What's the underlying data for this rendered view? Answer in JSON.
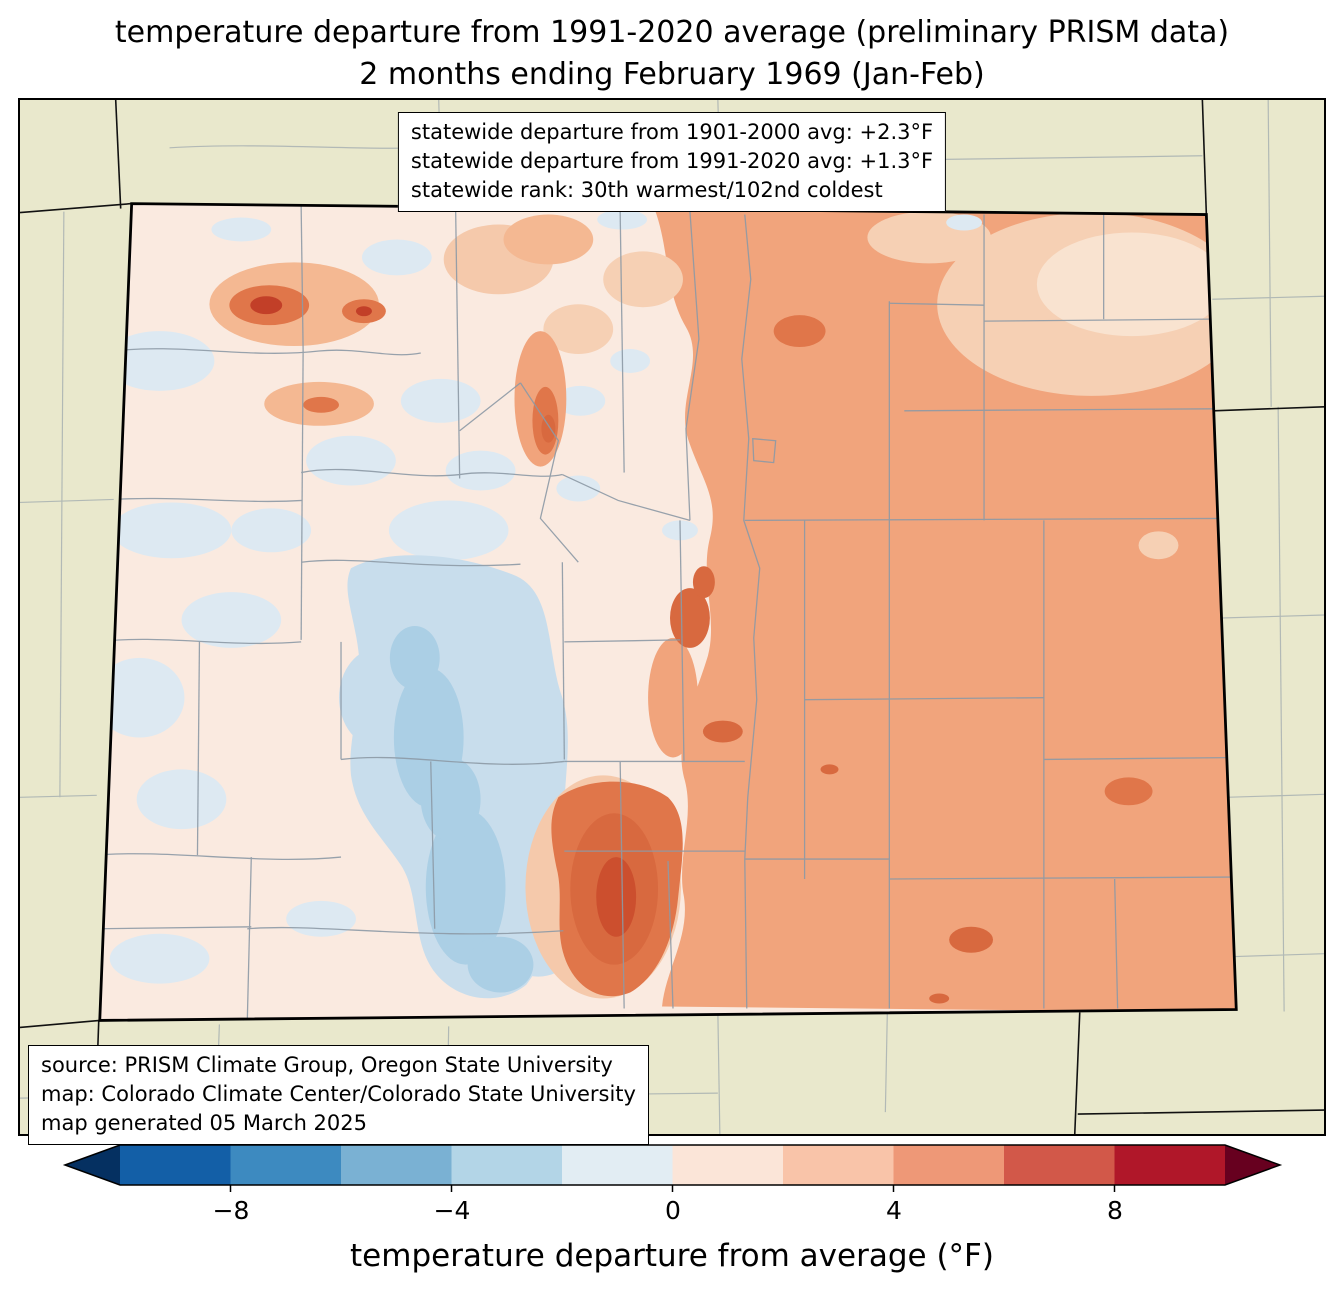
{
  "title": {
    "line1": "temperature departure from 1991-2020 average (preliminary PRISM data)",
    "line2": "2 months ending February 1969 (Jan-Feb)"
  },
  "stats_box": {
    "line1": "statewide departure from 1901-2000 avg: +2.3°F",
    "line2": "statewide departure from 1991-2020 avg: +1.3°F",
    "line3": "statewide rank: 30th warmest/102nd coldest"
  },
  "source_box": {
    "line1": "source: PRISM Climate Group, Oregon State University",
    "line2": "map: Colorado Climate Center/Colorado State University",
    "line3": "map generated 05 March 2025"
  },
  "colorbar": {
    "label": "temperature departure from average (°F)",
    "ticks": [
      "−8",
      "−4",
      "0",
      "4",
      "8"
    ],
    "tick_values": [
      -8,
      -4,
      0,
      4,
      8
    ],
    "range": [
      -10,
      10
    ],
    "units": "°F",
    "segment_colors": [
      "#135fa7",
      "#3d8ac0",
      "#7ab1d3",
      "#b3d5e7",
      "#e2edf3",
      "#fbe5d8",
      "#f9c4a9",
      "#ee9877",
      "#d25849",
      "#b01729"
    ],
    "left_arrow_color": "#053061",
    "right_arrow_color": "#67001f"
  },
  "map": {
    "region": "Colorado",
    "kind": "county-level temperature anomaly map",
    "palette": {
      "bg": "#e9e8cc",
      "base": "#faeae0",
      "paleblue": "#dde9f2",
      "lightblue": "#c8ddec",
      "medblue": "#abcfe5",
      "peachpale": "#f9e3d0",
      "peachlight": "#f6d0b4",
      "peachmid": "#f4b892",
      "peach": "#f5c9ab",
      "salmon": "#f1a47c",
      "salmondark": "#e0764a",
      "orangedark": "#d8693f",
      "orangedeep": "#cc4f2e",
      "reddark": "#c23f28",
      "county": "#8d9aa6",
      "border": "#000000"
    }
  }
}
